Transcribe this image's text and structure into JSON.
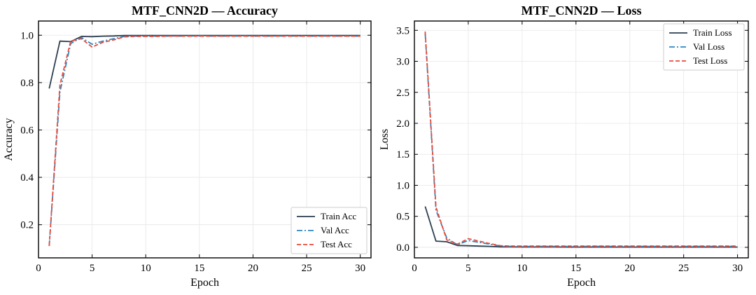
{
  "chart_data": [
    {
      "type": "line",
      "title": "MTF_CNN2D — Accuracy",
      "xlabel": "Epoch",
      "ylabel": "Accuracy",
      "xlim": [
        0,
        31
      ],
      "ylim": [
        0.06,
        1.06
      ],
      "xticks": [
        0,
        5,
        10,
        15,
        20,
        25,
        30
      ],
      "yticks": [
        0.2,
        0.4,
        0.6,
        0.8,
        1.0
      ],
      "ytick_labels": [
        "0.2",
        "0.4",
        "0.6",
        "0.8",
        "1.0"
      ],
      "grid": true,
      "legend_position": "lower-right",
      "x": [
        1,
        2,
        3,
        4,
        5,
        6,
        7,
        8,
        9,
        10,
        11,
        12,
        13,
        14,
        15,
        16,
        17,
        18,
        19,
        20,
        21,
        22,
        23,
        24,
        25,
        26,
        27,
        28,
        29,
        30
      ],
      "series": [
        {
          "name": "Train Acc",
          "color": "#2c3e50",
          "dash": "solid",
          "values": [
            0.775,
            0.975,
            0.973,
            0.995,
            0.994,
            0.996,
            0.997,
            0.999,
            0.999,
            0.999,
            0.999,
            0.999,
            0.999,
            0.999,
            0.999,
            0.999,
            0.999,
            0.999,
            0.999,
            0.999,
            0.999,
            0.999,
            0.999,
            0.999,
            0.999,
            0.999,
            0.999,
            0.999,
            0.999,
            0.999
          ]
        },
        {
          "name": "Val Acc",
          "color": "#2e86c1",
          "dash": "dashdot",
          "values": [
            0.11,
            0.76,
            0.965,
            0.99,
            0.962,
            0.975,
            0.985,
            0.995,
            0.996,
            0.996,
            0.996,
            0.996,
            0.996,
            0.996,
            0.997,
            0.996,
            0.996,
            0.996,
            0.997,
            0.996,
            0.996,
            0.996,
            0.997,
            0.996,
            0.996,
            0.996,
            0.997,
            0.996,
            0.996,
            0.996
          ]
        },
        {
          "name": "Test Acc",
          "color": "#e74c3c",
          "dash": "dashed",
          "values": [
            0.11,
            0.79,
            0.975,
            0.985,
            0.95,
            0.97,
            0.98,
            0.993,
            0.995,
            0.995,
            0.995,
            0.996,
            0.996,
            0.996,
            0.996,
            0.996,
            0.996,
            0.996,
            0.996,
            0.996,
            0.996,
            0.996,
            0.996,
            0.996,
            0.996,
            0.996,
            0.996,
            0.996,
            0.996,
            0.996
          ]
        }
      ]
    },
    {
      "type": "line",
      "title": "MTF_CNN2D — Loss",
      "xlabel": "Epoch",
      "ylabel": "Loss",
      "xlim": [
        0,
        31
      ],
      "ylim": [
        -0.17,
        3.65
      ],
      "xticks": [
        0,
        5,
        10,
        15,
        20,
        25,
        30
      ],
      "yticks": [
        0.0,
        0.5,
        1.0,
        1.5,
        2.0,
        2.5,
        3.0,
        3.5
      ],
      "ytick_labels": [
        "0.0",
        "0.5",
        "1.0",
        "1.5",
        "2.0",
        "2.5",
        "3.0",
        "3.5"
      ],
      "grid": true,
      "legend_position": "upper-right",
      "x": [
        1,
        2,
        3,
        4,
        5,
        6,
        7,
        8,
        9,
        10,
        11,
        12,
        13,
        14,
        15,
        16,
        17,
        18,
        19,
        20,
        21,
        22,
        23,
        24,
        25,
        26,
        27,
        28,
        29,
        30
      ],
      "series": [
        {
          "name": "Train Loss",
          "color": "#2c3e50",
          "dash": "solid",
          "values": [
            0.66,
            0.1,
            0.09,
            0.03,
            0.025,
            0.02,
            0.015,
            0.008,
            0.006,
            0.005,
            0.005,
            0.005,
            0.005,
            0.004,
            0.004,
            0.004,
            0.004,
            0.004,
            0.004,
            0.004,
            0.004,
            0.004,
            0.004,
            0.004,
            0.004,
            0.004,
            0.004,
            0.004,
            0.004,
            0.004
          ]
        },
        {
          "name": "Val Loss",
          "color": "#2e86c1",
          "dash": "dashdot",
          "values": [
            3.45,
            0.6,
            0.15,
            0.04,
            0.11,
            0.08,
            0.05,
            0.02,
            0.015,
            0.015,
            0.015,
            0.015,
            0.015,
            0.015,
            0.015,
            0.015,
            0.015,
            0.015,
            0.015,
            0.015,
            0.015,
            0.015,
            0.015,
            0.015,
            0.015,
            0.015,
            0.015,
            0.015,
            0.015,
            0.015
          ]
        },
        {
          "name": "Test Loss",
          "color": "#e74c3c",
          "dash": "dashed",
          "values": [
            3.48,
            0.65,
            0.12,
            0.05,
            0.14,
            0.1,
            0.06,
            0.025,
            0.02,
            0.02,
            0.02,
            0.02,
            0.02,
            0.02,
            0.02,
            0.02,
            0.02,
            0.02,
            0.02,
            0.02,
            0.02,
            0.02,
            0.02,
            0.02,
            0.02,
            0.02,
            0.02,
            0.02,
            0.02,
            0.02
          ]
        }
      ]
    }
  ]
}
